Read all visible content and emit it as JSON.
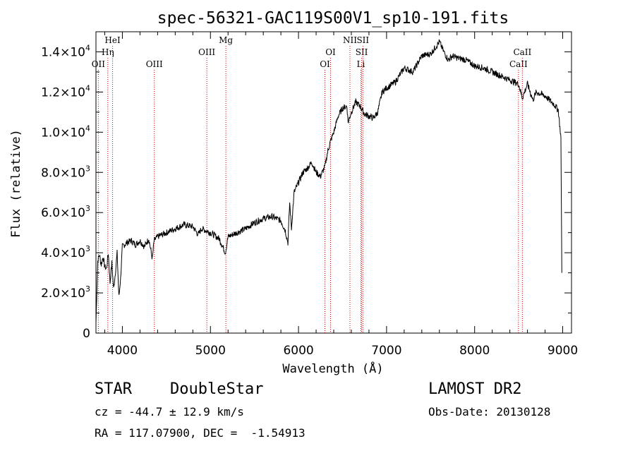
{
  "chart_data": {
    "type": "line",
    "title": "spec-56321-GAC119S00V1_sp10-191.fits",
    "xlabel": "Wavelength (Å)",
    "ylabel": "Flux (relative)",
    "xlim": [
      3700,
      9100
    ],
    "ylim": [
      0,
      15000
    ],
    "x_ticks": [
      4000,
      5000,
      6000,
      7000,
      8000,
      9000
    ],
    "y_ticks": [
      {
        "value": 0,
        "mantissa": "0",
        "exponent": ""
      },
      {
        "value": 2000,
        "mantissa": "2.0×10",
        "exponent": "3"
      },
      {
        "value": 4000,
        "mantissa": "4.0×10",
        "exponent": "3"
      },
      {
        "value": 6000,
        "mantissa": "6.0×10",
        "exponent": "3"
      },
      {
        "value": 8000,
        "mantissa": "8.0×10",
        "exponent": "3"
      },
      {
        "value": 10000,
        "mantissa": "1.0×10",
        "exponent": "4"
      },
      {
        "value": 12000,
        "mantissa": "1.2×10",
        "exponent": "4"
      },
      {
        "value": 14000,
        "mantissa": "1.4×10",
        "exponent": "4"
      }
    ],
    "series": [
      {
        "x": [
          3700,
          3720,
          3740,
          3760,
          3780,
          3800,
          3820,
          3840,
          3860,
          3880,
          3900,
          3920,
          3940,
          3960,
          3980,
          4000,
          4050,
          4100,
          4150,
          4200,
          4250,
          4300,
          4340,
          4360,
          4400,
          4500,
          4600,
          4700,
          4800,
          4860,
          4900,
          5000,
          5100,
          5170,
          5200,
          5300,
          5400,
          5500,
          5600,
          5700,
          5800,
          5850,
          5880,
          5900,
          5920,
          5950,
          6000,
          6050,
          6100,
          6150,
          6200,
          6250,
          6300,
          6330,
          6360,
          6400,
          6450,
          6500,
          6550,
          6563,
          6600,
          6650,
          6700,
          6750,
          6800,
          6850,
          6900,
          6950,
          7000,
          7100,
          7200,
          7300,
          7400,
          7500,
          7600,
          7650,
          7700,
          7750,
          7800,
          7900,
          8000,
          8100,
          8200,
          8300,
          8400,
          8498,
          8542,
          8600,
          8662,
          8700,
          8800,
          8900,
          8950,
          8980,
          8990
        ],
        "y": [
          500,
          3600,
          3900,
          3400,
          3800,
          3300,
          3200,
          4000,
          2500,
          3500,
          2200,
          3000,
          4000,
          1800,
          2700,
          4300,
          4500,
          4600,
          4400,
          4600,
          4300,
          4700,
          3700,
          4600,
          4800,
          5000,
          5200,
          5400,
          5300,
          4900,
          5200,
          5000,
          4700,
          4000,
          4800,
          5000,
          5200,
          5500,
          5700,
          5800,
          5600,
          5100,
          4500,
          6500,
          5200,
          7000,
          7500,
          8000,
          8200,
          8500,
          8000,
          7800,
          8300,
          9000,
          9500,
          10000,
          10800,
          11200,
          11300,
          10500,
          11000,
          11500,
          11300,
          10900,
          10800,
          10700,
          11000,
          12000,
          12200,
          12500,
          13200,
          13000,
          13800,
          13900,
          14500,
          14000,
          13600,
          13800,
          13700,
          13600,
          13300,
          13200,
          13000,
          12800,
          12600,
          12400,
          11700,
          12400,
          11600,
          12000,
          11800,
          11400,
          11100,
          9700,
          3000
        ]
      }
    ],
    "line_markers": [
      {
        "label": "OII",
        "wavelength": 3727,
        "row": 3
      },
      {
        "label": "Hη",
        "wavelength": 3835,
        "row": 2
      },
      {
        "label": "HeI",
        "wavelength": 3889,
        "row": 1
      },
      {
        "label": "OIII",
        "wavelength": 4363,
        "row": 3
      },
      {
        "label": "OIII",
        "wavelength": 4959,
        "row": 2
      },
      {
        "label": "Mg",
        "wavelength": 5175,
        "row": 1
      },
      {
        "label": "OI",
        "wavelength": 6300,
        "row": 3
      },
      {
        "label": "OI",
        "wavelength": 6364,
        "row": 2
      },
      {
        "label": "NII",
        "wavelength": 6584,
        "row": 1
      },
      {
        "label": "Li",
        "wavelength": 6708,
        "row": 3
      },
      {
        "label": "SII",
        "wavelength": 6717,
        "row": 2
      },
      {
        "label": "SII",
        "wavelength": 6731,
        "row": 1
      },
      {
        "label": "CaII",
        "wavelength": 8498,
        "row": 3
      },
      {
        "label": "CaII",
        "wavelength": 8542,
        "row": 2
      }
    ],
    "marker_color": "#cc0000",
    "grid": false
  },
  "info": {
    "class": "STAR",
    "subclass": "DoubleStar",
    "survey": "LAMOST DR2",
    "cz": "cz = -44.7 ± 12.9 km/s",
    "obs_date": "Obs-Date: 20130128",
    "radec": "RA = 117.07900, DEC =  -1.54913"
  }
}
